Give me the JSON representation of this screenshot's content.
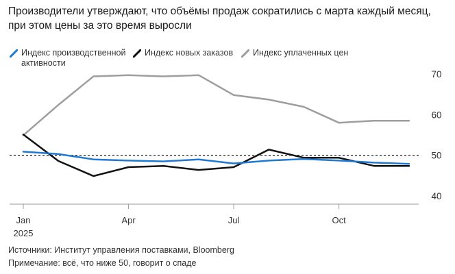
{
  "title": "Производители утверждают, что объёмы продаж сократились с марта каждый месяц, при этом цены за это время выросли",
  "legend": [
    {
      "label": "Индекс производственной активности",
      "color": "#1f78d1"
    },
    {
      "label": "Индекс новых заказов",
      "color": "#111111"
    },
    {
      "label": "Индекс уплаченных цен",
      "color": "#9e9e9e"
    }
  ],
  "footer": {
    "source": "Источники: Институт управления поставками, Bloomberg",
    "note": "Примечание: всё, что ниже 50, говорит о спаде"
  },
  "chart_data": {
    "type": "line",
    "title": "Производители утверждают, что объёмы продаж сократились с марта каждый месяц, при этом цены за это время выросли",
    "x": [
      0,
      1,
      2,
      3,
      4,
      5,
      6,
      7,
      8,
      9,
      10,
      11
    ],
    "x_tick_positions": [
      0,
      3,
      6,
      9
    ],
    "x_tick_labels": [
      "Jan",
      "Apr",
      "Jul",
      "Oct"
    ],
    "x_year_label": "2025",
    "xlim": [
      0,
      11
    ],
    "y_ticks": [
      40,
      50,
      60,
      70
    ],
    "ylim": [
      38,
      71
    ],
    "reference_line": 50,
    "grid": false,
    "legend_position": "top-left",
    "series": [
      {
        "name": "Индекс производственной активности",
        "color": "#1f78d1",
        "values": [
          50.9,
          50.3,
          49.0,
          48.7,
          48.5,
          49.0,
          48.0,
          48.7,
          49.1,
          48.7,
          48.2,
          47.9
        ]
      },
      {
        "name": "Индекс новых заказов",
        "color": "#111111",
        "values": [
          55.1,
          48.6,
          44.9,
          47.1,
          47.4,
          46.4,
          47.1,
          51.4,
          49.4,
          49.4,
          47.4,
          47.4
        ]
      },
      {
        "name": "Индекс уплаченных цен",
        "color": "#9e9e9e",
        "values": [
          54.9,
          62.4,
          69.4,
          69.7,
          69.4,
          69.7,
          64.8,
          63.7,
          61.9,
          58.0,
          58.5,
          58.5
        ]
      }
    ]
  }
}
